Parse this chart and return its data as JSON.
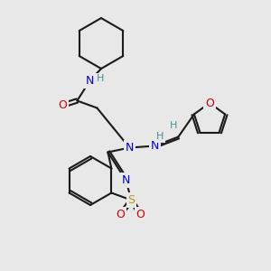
{
  "background_color": "#e8e8e8",
  "bond_color": "#1a1a1a",
  "atom_colors": {
    "N": "#0000cc",
    "O": "#cc0000",
    "S": "#b8960c",
    "H": "#4a9090",
    "C": "#1a1a1a"
  },
  "figsize": [
    3.0,
    3.0
  ],
  "dpi": 100
}
